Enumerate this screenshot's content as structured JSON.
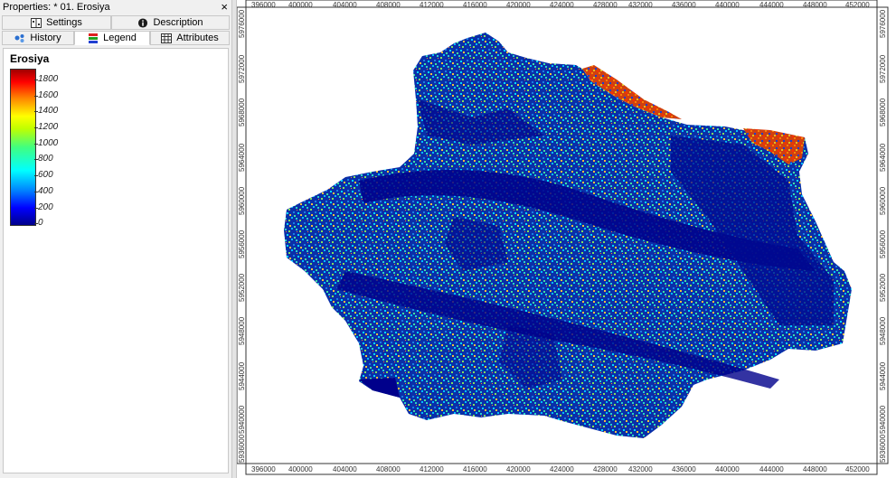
{
  "panel": {
    "title": "Properties: * 01. Erosiya",
    "close_glyph": "×",
    "tabs": [
      {
        "label": "Settings",
        "icon": "settings-icon"
      },
      {
        "label": "Description",
        "icon": "info-icon"
      },
      {
        "label": "History",
        "icon": "history-icon"
      },
      {
        "label": "Legend",
        "icon": "legend-icon"
      },
      {
        "label": "Attributes",
        "icon": "table-icon"
      }
    ],
    "active_tab": "Legend"
  },
  "legend": {
    "title": "Erosiya",
    "labels": [
      "1800",
      "1600",
      "1400",
      "1200",
      "1000",
      "800",
      "600",
      "400",
      "200",
      "0"
    ]
  },
  "map": {
    "x_ticks": [
      "396000",
      "400000",
      "404000",
      "408000",
      "412000",
      "416000",
      "420000",
      "424000",
      "428000",
      "432000",
      "436000",
      "440000",
      "444000",
      "448000",
      "452000"
    ],
    "y_ticks": [
      "5976000",
      "5972000",
      "5968000",
      "5964000",
      "5960000",
      "5956000",
      "5952000",
      "5948000",
      "5944000",
      "5940000",
      "5936000"
    ],
    "colors": {
      "low": "#00008b",
      "mid": "#00bfff",
      "high": "#ff3000"
    }
  }
}
